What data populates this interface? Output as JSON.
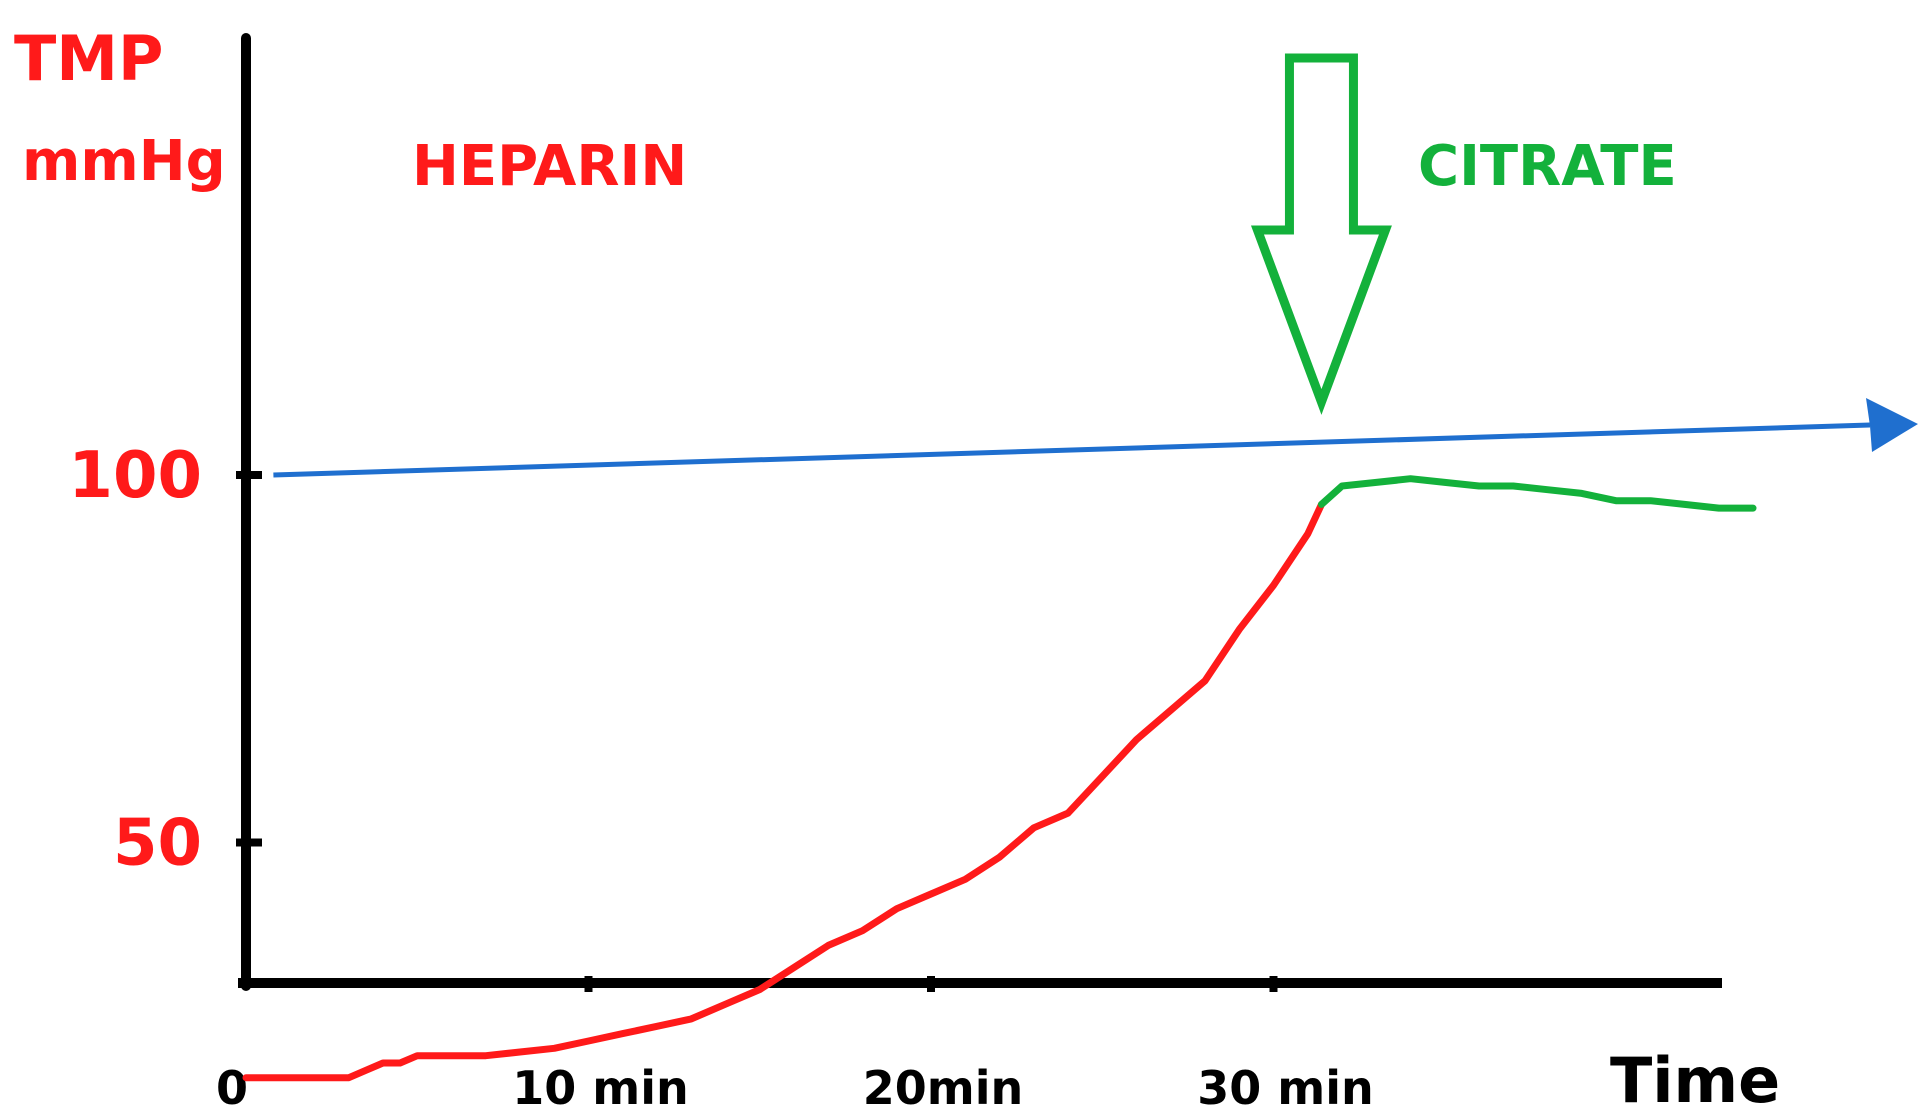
{
  "chart_data": {
    "type": "line",
    "title": "",
    "ylabel": "TMP",
    "yunit": "mmHg",
    "xlabel": "Time",
    "xlim": [
      0,
      44
    ],
    "ylim": [
      0,
      110
    ],
    "y_ticks": [
      {
        "value": 50,
        "label": "50"
      },
      {
        "value": 100,
        "label": "100"
      }
    ],
    "x_ticks": [
      {
        "value": 0,
        "label": "0"
      },
      {
        "value": 10,
        "label": "10 min"
      },
      {
        "value": 20,
        "label": "20min"
      },
      {
        "value": 30,
        "label": "30 min"
      }
    ],
    "annotations": {
      "heparin": "HEPARIN",
      "citrate": "CITRATE"
    },
    "reference_line": {
      "x": [
        0.8,
        49
      ],
      "y": [
        100,
        105
      ]
    },
    "switch_time": 31.4,
    "series": [
      {
        "name": "HEPARIN",
        "color": "#ff1a1a",
        "x": [
          0,
          1,
          2,
          3,
          3.5,
          4,
          4.5,
          5,
          6,
          7,
          8,
          9,
          10,
          11,
          12,
          13,
          14,
          15,
          16,
          17,
          18,
          19,
          20,
          21,
          22,
          23,
          24,
          25,
          26,
          27,
          28,
          29,
          30,
          31,
          31.4
        ],
        "y": [
          18,
          18,
          18,
          18,
          19,
          20,
          20,
          21,
          21,
          21,
          21.5,
          22,
          23,
          24,
          25,
          26,
          28,
          30,
          33,
          36,
          38,
          41,
          43,
          45,
          48,
          52,
          54,
          59,
          64,
          68,
          72,
          79,
          85,
          92,
          96
        ]
      },
      {
        "name": "CITRATE",
        "color": "#13b13b",
        "x": [
          31.4,
          32,
          33,
          34,
          35,
          36,
          37,
          38,
          39,
          40,
          41,
          42,
          43,
          44
        ],
        "y": [
          96,
          98.5,
          99,
          99.5,
          99,
          98.5,
          98.5,
          98,
          97.5,
          96.5,
          96.5,
          96,
          95.5,
          95.5
        ]
      }
    ],
    "grid": false,
    "legend": "none",
    "colors": {
      "axis": "#000000",
      "labels": "#ff1a1a",
      "heparin": "#ff1a1a",
      "citrate": "#13b13b",
      "reference": "#1f6fcf",
      "arrow": "#13b13b"
    }
  }
}
